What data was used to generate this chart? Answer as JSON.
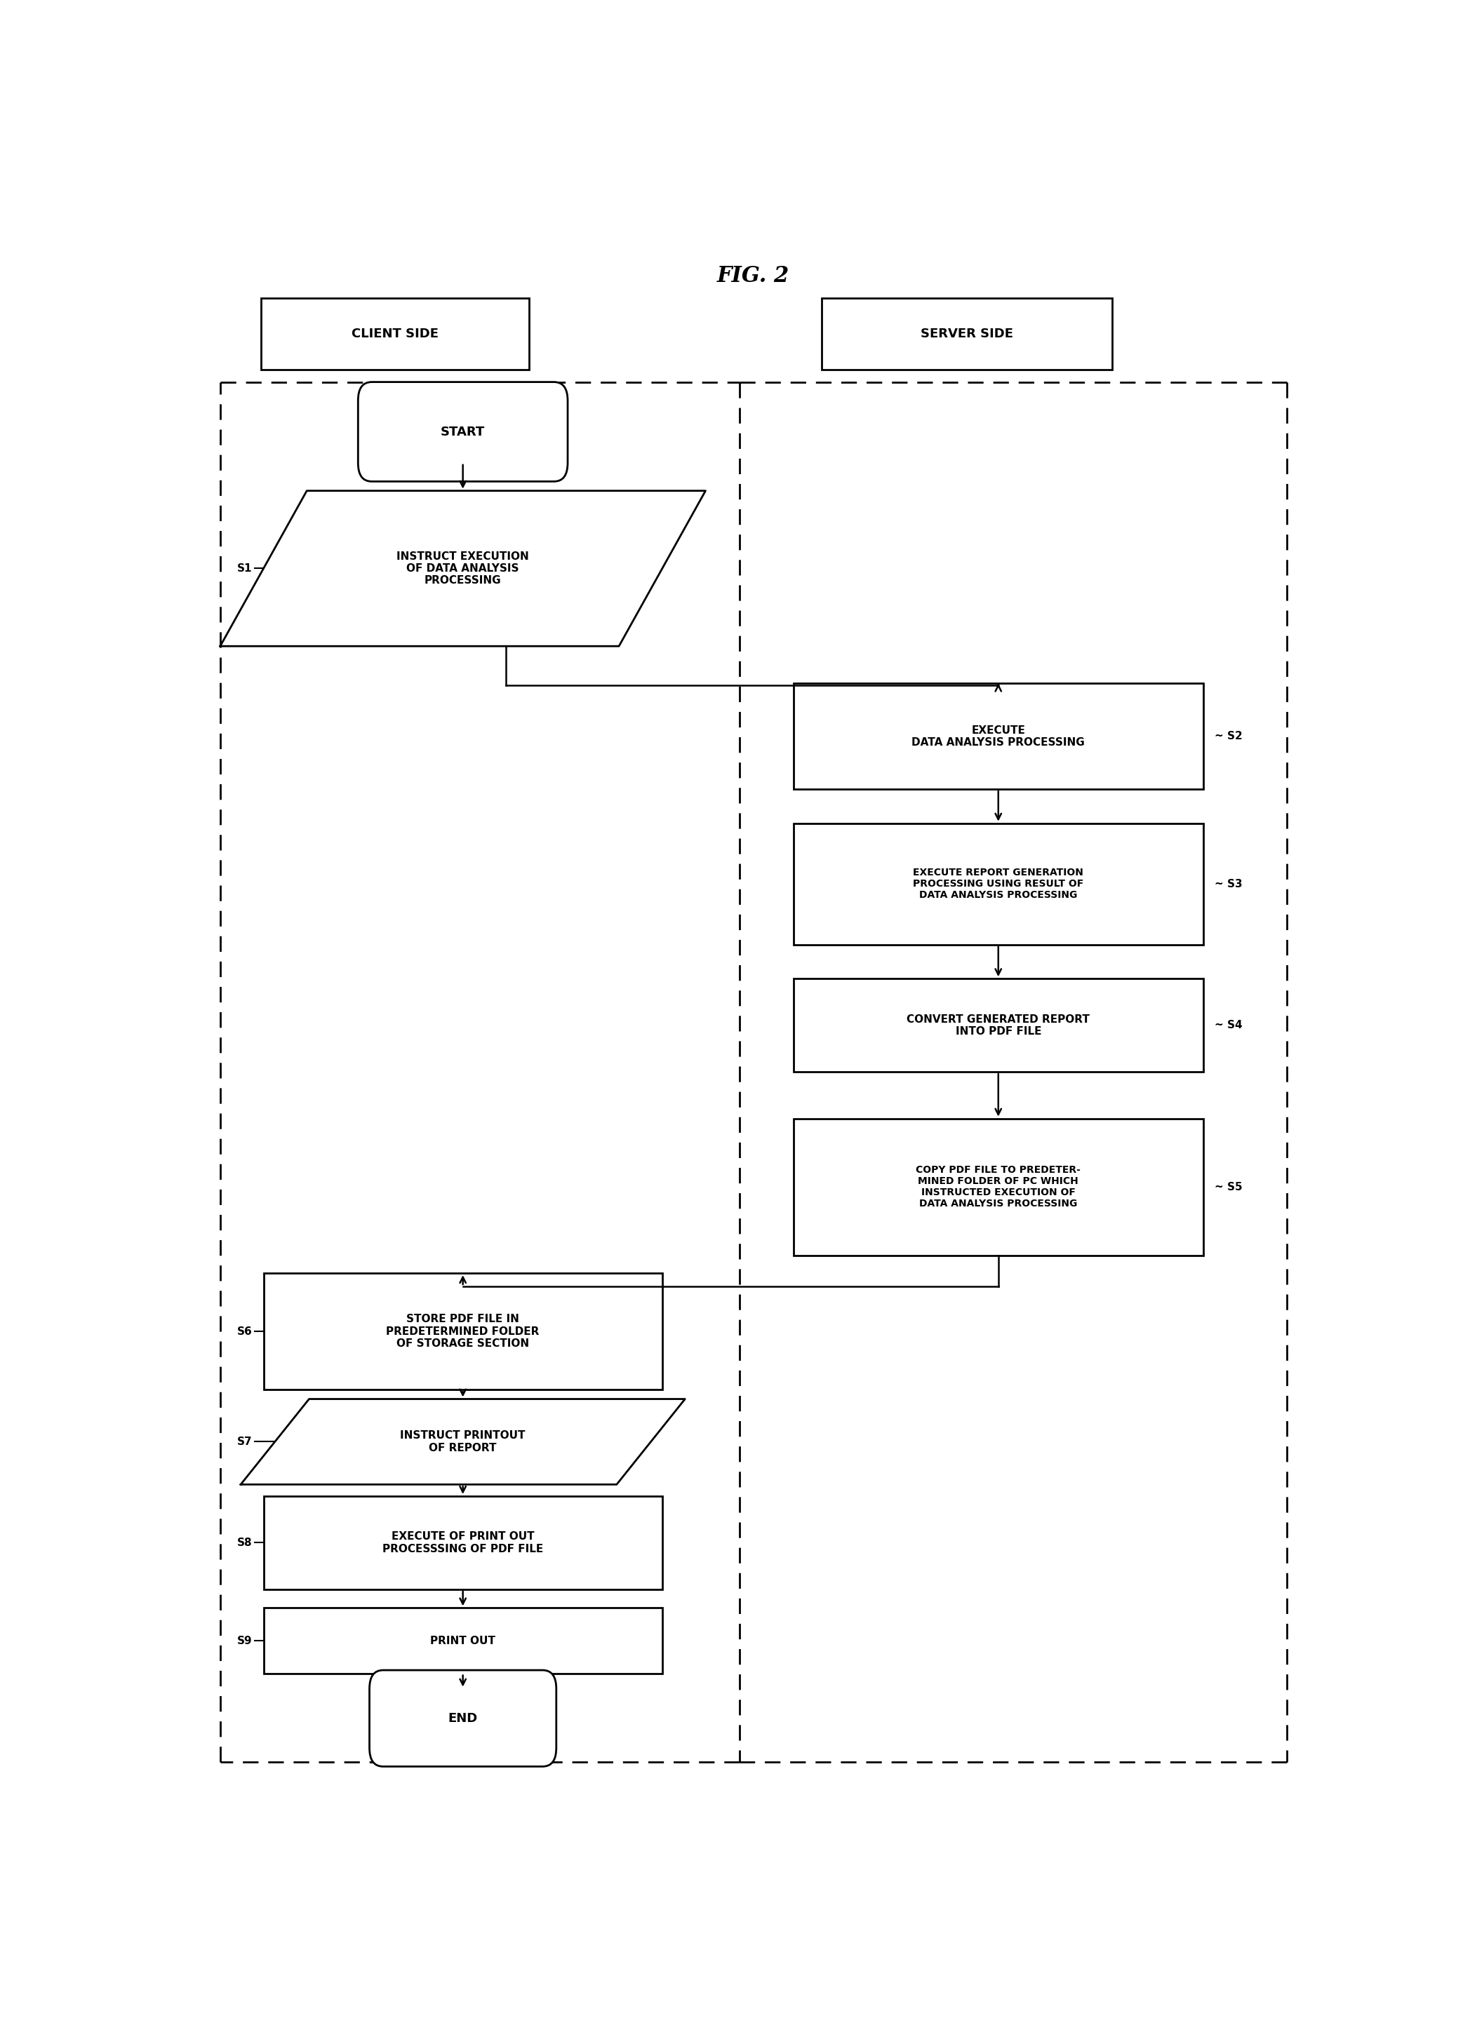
{
  "title": "FIG. 2",
  "bg_color": "#ffffff",
  "fig_width": 20.95,
  "fig_height": 28.77,
  "client_label": "CLIENT SIDE",
  "server_label": "SERVER SIDE",
  "s1_text": "INSTRUCT EXECUTION\nOF DATA ANALYSIS\nPROCESSING",
  "s2_text": "EXECUTE\nDATA ANALYSIS PROCESSING",
  "s3_text": "EXECUTE REPORT GENERATION\nPROCESSING USING RESULT OF\nDATA ANALYSIS PROCESSING",
  "s4_text": "CONVERT GENERATED REPORT\nINTO PDF FILE",
  "s5_text": "COPY PDF FILE TO PREDETER-\nMINED FOLDER OF PC WHICH\nINSTRUCTED EXECUTION OF\nDATA ANALYSIS PROCESSING",
  "s6_text": "STORE PDF FILE IN\nPREDETERMINED FOLDER\nOF STORAGE SECTION",
  "s7_text": "INSTRUCT PRINTOUT\nOF REPORT",
  "s8_text": "EXECUTE OF PRINT OUT\nPROCESSSING OF PDF FILE",
  "s9_text": "PRINT OUT",
  "start_text": "START",
  "end_text": "END"
}
